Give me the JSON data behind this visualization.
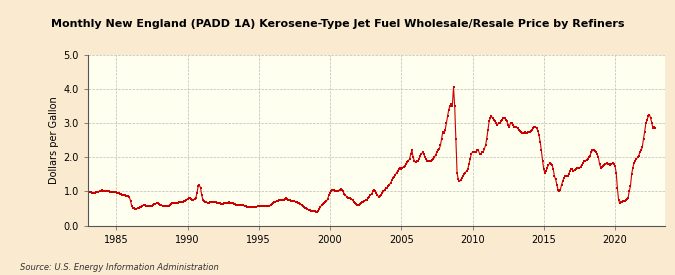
{
  "title": "Monthly New England (PADD 1A) Kerosene-Type Jet Fuel Wholesale/Resale Price by Refiners",
  "ylabel": "Dollars per Gallon",
  "source": "Source: U.S. Energy Information Administration",
  "outer_bg": "#faebd0",
  "inner_bg": "#fffff0",
  "line_color": "#cc0000",
  "xlim": [
    1983.0,
    2023.5
  ],
  "ylim": [
    0.0,
    5.0
  ],
  "yticks": [
    0.0,
    1.0,
    2.0,
    3.0,
    4.0,
    5.0
  ],
  "xticks": [
    1985,
    1990,
    1995,
    2000,
    2005,
    2010,
    2015,
    2020
  ],
  "data": [
    [
      1983.083,
      0.98
    ],
    [
      1983.167,
      0.99
    ],
    [
      1983.25,
      0.97
    ],
    [
      1983.333,
      0.96
    ],
    [
      1983.417,
      0.95
    ],
    [
      1983.5,
      0.96
    ],
    [
      1983.583,
      0.97
    ],
    [
      1983.667,
      0.98
    ],
    [
      1983.75,
      0.99
    ],
    [
      1983.833,
      1.0
    ],
    [
      1983.917,
      1.02
    ],
    [
      1984.0,
      1.03
    ],
    [
      1984.083,
      1.02
    ],
    [
      1984.167,
      1.01
    ],
    [
      1984.25,
      1.0
    ],
    [
      1984.333,
      1.0
    ],
    [
      1984.417,
      1.0
    ],
    [
      1984.5,
      1.0
    ],
    [
      1984.583,
      0.99
    ],
    [
      1984.667,
      0.98
    ],
    [
      1984.75,
      0.97
    ],
    [
      1984.833,
      0.97
    ],
    [
      1984.917,
      0.97
    ],
    [
      1985.0,
      0.97
    ],
    [
      1985.083,
      0.96
    ],
    [
      1985.167,
      0.95
    ],
    [
      1985.25,
      0.93
    ],
    [
      1985.333,
      0.91
    ],
    [
      1985.417,
      0.9
    ],
    [
      1985.5,
      0.9
    ],
    [
      1985.583,
      0.88
    ],
    [
      1985.667,
      0.87
    ],
    [
      1985.75,
      0.87
    ],
    [
      1985.833,
      0.87
    ],
    [
      1985.917,
      0.84
    ],
    [
      1986.0,
      0.72
    ],
    [
      1986.083,
      0.58
    ],
    [
      1986.167,
      0.52
    ],
    [
      1986.25,
      0.5
    ],
    [
      1986.333,
      0.47
    ],
    [
      1986.417,
      0.49
    ],
    [
      1986.5,
      0.51
    ],
    [
      1986.583,
      0.52
    ],
    [
      1986.667,
      0.55
    ],
    [
      1986.75,
      0.55
    ],
    [
      1986.833,
      0.58
    ],
    [
      1986.917,
      0.6
    ],
    [
      1987.0,
      0.6
    ],
    [
      1987.083,
      0.58
    ],
    [
      1987.167,
      0.57
    ],
    [
      1987.25,
      0.57
    ],
    [
      1987.333,
      0.56
    ],
    [
      1987.417,
      0.57
    ],
    [
      1987.5,
      0.58
    ],
    [
      1987.583,
      0.6
    ],
    [
      1987.667,
      0.62
    ],
    [
      1987.75,
      0.64
    ],
    [
      1987.833,
      0.65
    ],
    [
      1987.917,
      0.65
    ],
    [
      1988.0,
      0.63
    ],
    [
      1988.083,
      0.61
    ],
    [
      1988.167,
      0.59
    ],
    [
      1988.25,
      0.57
    ],
    [
      1988.333,
      0.56
    ],
    [
      1988.417,
      0.56
    ],
    [
      1988.5,
      0.57
    ],
    [
      1988.583,
      0.57
    ],
    [
      1988.667,
      0.57
    ],
    [
      1988.75,
      0.6
    ],
    [
      1988.833,
      0.63
    ],
    [
      1988.917,
      0.65
    ],
    [
      1989.0,
      0.67
    ],
    [
      1989.083,
      0.66
    ],
    [
      1989.167,
      0.66
    ],
    [
      1989.25,
      0.66
    ],
    [
      1989.333,
      0.67
    ],
    [
      1989.417,
      0.68
    ],
    [
      1989.5,
      0.68
    ],
    [
      1989.583,
      0.68
    ],
    [
      1989.667,
      0.69
    ],
    [
      1989.75,
      0.71
    ],
    [
      1989.833,
      0.73
    ],
    [
      1989.917,
      0.75
    ],
    [
      1990.0,
      0.78
    ],
    [
      1990.083,
      0.8
    ],
    [
      1990.167,
      0.8
    ],
    [
      1990.25,
      0.78
    ],
    [
      1990.333,
      0.76
    ],
    [
      1990.417,
      0.76
    ],
    [
      1990.5,
      0.78
    ],
    [
      1990.583,
      0.82
    ],
    [
      1990.667,
      0.95
    ],
    [
      1990.75,
      1.15
    ],
    [
      1990.833,
      1.18
    ],
    [
      1990.917,
      1.1
    ],
    [
      1991.0,
      0.88
    ],
    [
      1991.083,
      0.75
    ],
    [
      1991.167,
      0.72
    ],
    [
      1991.25,
      0.7
    ],
    [
      1991.333,
      0.68
    ],
    [
      1991.417,
      0.67
    ],
    [
      1991.5,
      0.67
    ],
    [
      1991.583,
      0.68
    ],
    [
      1991.667,
      0.68
    ],
    [
      1991.75,
      0.7
    ],
    [
      1991.833,
      0.7
    ],
    [
      1991.917,
      0.7
    ],
    [
      1992.0,
      0.68
    ],
    [
      1992.083,
      0.66
    ],
    [
      1992.167,
      0.65
    ],
    [
      1992.25,
      0.65
    ],
    [
      1992.333,
      0.64
    ],
    [
      1992.417,
      0.64
    ],
    [
      1992.5,
      0.64
    ],
    [
      1992.583,
      0.65
    ],
    [
      1992.667,
      0.65
    ],
    [
      1992.75,
      0.66
    ],
    [
      1992.833,
      0.67
    ],
    [
      1992.917,
      0.68
    ],
    [
      1993.0,
      0.67
    ],
    [
      1993.083,
      0.66
    ],
    [
      1993.167,
      0.65
    ],
    [
      1993.25,
      0.64
    ],
    [
      1993.333,
      0.62
    ],
    [
      1993.417,
      0.61
    ],
    [
      1993.5,
      0.61
    ],
    [
      1993.583,
      0.6
    ],
    [
      1993.667,
      0.59
    ],
    [
      1993.75,
      0.59
    ],
    [
      1993.833,
      0.59
    ],
    [
      1993.917,
      0.59
    ],
    [
      1994.0,
      0.57
    ],
    [
      1994.083,
      0.56
    ],
    [
      1994.167,
      0.55
    ],
    [
      1994.25,
      0.55
    ],
    [
      1994.333,
      0.54
    ],
    [
      1994.417,
      0.54
    ],
    [
      1994.5,
      0.55
    ],
    [
      1994.583,
      0.55
    ],
    [
      1994.667,
      0.55
    ],
    [
      1994.75,
      0.55
    ],
    [
      1994.833,
      0.55
    ],
    [
      1994.917,
      0.56
    ],
    [
      1995.0,
      0.56
    ],
    [
      1995.083,
      0.56
    ],
    [
      1995.167,
      0.56
    ],
    [
      1995.25,
      0.57
    ],
    [
      1995.333,
      0.56
    ],
    [
      1995.417,
      0.56
    ],
    [
      1995.5,
      0.56
    ],
    [
      1995.583,
      0.56
    ],
    [
      1995.667,
      0.57
    ],
    [
      1995.75,
      0.58
    ],
    [
      1995.833,
      0.6
    ],
    [
      1995.917,
      0.62
    ],
    [
      1996.0,
      0.65
    ],
    [
      1996.083,
      0.68
    ],
    [
      1996.167,
      0.7
    ],
    [
      1996.25,
      0.72
    ],
    [
      1996.333,
      0.73
    ],
    [
      1996.417,
      0.74
    ],
    [
      1996.5,
      0.76
    ],
    [
      1996.583,
      0.76
    ],
    [
      1996.667,
      0.76
    ],
    [
      1996.75,
      0.76
    ],
    [
      1996.833,
      0.78
    ],
    [
      1996.917,
      0.8
    ],
    [
      1997.0,
      0.78
    ],
    [
      1997.083,
      0.75
    ],
    [
      1997.167,
      0.74
    ],
    [
      1997.25,
      0.73
    ],
    [
      1997.333,
      0.72
    ],
    [
      1997.417,
      0.72
    ],
    [
      1997.5,
      0.71
    ],
    [
      1997.583,
      0.7
    ],
    [
      1997.667,
      0.68
    ],
    [
      1997.75,
      0.66
    ],
    [
      1997.833,
      0.65
    ],
    [
      1997.917,
      0.63
    ],
    [
      1998.0,
      0.6
    ],
    [
      1998.083,
      0.57
    ],
    [
      1998.167,
      0.54
    ],
    [
      1998.25,
      0.52
    ],
    [
      1998.333,
      0.5
    ],
    [
      1998.417,
      0.48
    ],
    [
      1998.5,
      0.46
    ],
    [
      1998.583,
      0.44
    ],
    [
      1998.667,
      0.43
    ],
    [
      1998.75,
      0.43
    ],
    [
      1998.833,
      0.43
    ],
    [
      1998.917,
      0.42
    ],
    [
      1999.0,
      0.4
    ],
    [
      1999.083,
      0.4
    ],
    [
      1999.167,
      0.42
    ],
    [
      1999.25,
      0.48
    ],
    [
      1999.333,
      0.55
    ],
    [
      1999.417,
      0.6
    ],
    [
      1999.5,
      0.63
    ],
    [
      1999.583,
      0.66
    ],
    [
      1999.667,
      0.68
    ],
    [
      1999.75,
      0.71
    ],
    [
      1999.833,
      0.78
    ],
    [
      1999.917,
      0.88
    ],
    [
      2000.0,
      0.95
    ],
    [
      2000.083,
      1.0
    ],
    [
      2000.167,
      1.05
    ],
    [
      2000.25,
      1.05
    ],
    [
      2000.333,
      1.0
    ],
    [
      2000.417,
      1.0
    ],
    [
      2000.5,
      1.0
    ],
    [
      2000.583,
      1.02
    ],
    [
      2000.667,
      1.05
    ],
    [
      2000.75,
      1.06
    ],
    [
      2000.833,
      1.05
    ],
    [
      2000.917,
      1.0
    ],
    [
      2001.0,
      0.92
    ],
    [
      2001.083,
      0.88
    ],
    [
      2001.167,
      0.85
    ],
    [
      2001.25,
      0.82
    ],
    [
      2001.333,
      0.8
    ],
    [
      2001.417,
      0.8
    ],
    [
      2001.5,
      0.78
    ],
    [
      2001.583,
      0.74
    ],
    [
      2001.667,
      0.7
    ],
    [
      2001.75,
      0.65
    ],
    [
      2001.833,
      0.63
    ],
    [
      2001.917,
      0.6
    ],
    [
      2002.0,
      0.6
    ],
    [
      2002.083,
      0.62
    ],
    [
      2002.167,
      0.65
    ],
    [
      2002.25,
      0.68
    ],
    [
      2002.333,
      0.7
    ],
    [
      2002.417,
      0.72
    ],
    [
      2002.5,
      0.74
    ],
    [
      2002.583,
      0.76
    ],
    [
      2002.667,
      0.8
    ],
    [
      2002.75,
      0.85
    ],
    [
      2002.833,
      0.9
    ],
    [
      2002.917,
      0.92
    ],
    [
      2003.0,
      1.0
    ],
    [
      2003.083,
      1.05
    ],
    [
      2003.167,
      1.02
    ],
    [
      2003.25,
      0.95
    ],
    [
      2003.333,
      0.88
    ],
    [
      2003.417,
      0.85
    ],
    [
      2003.5,
      0.87
    ],
    [
      2003.583,
      0.9
    ],
    [
      2003.667,
      0.95
    ],
    [
      2003.75,
      1.0
    ],
    [
      2003.833,
      1.05
    ],
    [
      2003.917,
      1.1
    ],
    [
      2004.0,
      1.1
    ],
    [
      2004.083,
      1.15
    ],
    [
      2004.167,
      1.2
    ],
    [
      2004.25,
      1.25
    ],
    [
      2004.333,
      1.32
    ],
    [
      2004.417,
      1.38
    ],
    [
      2004.5,
      1.42
    ],
    [
      2004.583,
      1.48
    ],
    [
      2004.667,
      1.55
    ],
    [
      2004.75,
      1.6
    ],
    [
      2004.833,
      1.65
    ],
    [
      2004.917,
      1.7
    ],
    [
      2005.0,
      1.65
    ],
    [
      2005.083,
      1.7
    ],
    [
      2005.167,
      1.72
    ],
    [
      2005.25,
      1.75
    ],
    [
      2005.333,
      1.8
    ],
    [
      2005.417,
      1.85
    ],
    [
      2005.5,
      1.9
    ],
    [
      2005.583,
      1.95
    ],
    [
      2005.667,
      2.1
    ],
    [
      2005.75,
      2.2
    ],
    [
      2005.833,
      2.0
    ],
    [
      2005.917,
      1.9
    ],
    [
      2006.0,
      1.85
    ],
    [
      2006.083,
      1.88
    ],
    [
      2006.167,
      1.9
    ],
    [
      2006.25,
      1.95
    ],
    [
      2006.333,
      2.05
    ],
    [
      2006.417,
      2.1
    ],
    [
      2006.5,
      2.15
    ],
    [
      2006.583,
      2.1
    ],
    [
      2006.667,
      2.0
    ],
    [
      2006.75,
      1.95
    ],
    [
      2006.833,
      1.9
    ],
    [
      2006.917,
      1.88
    ],
    [
      2007.0,
      1.88
    ],
    [
      2007.083,
      1.9
    ],
    [
      2007.167,
      1.92
    ],
    [
      2007.25,
      1.95
    ],
    [
      2007.333,
      2.0
    ],
    [
      2007.417,
      2.08
    ],
    [
      2007.5,
      2.15
    ],
    [
      2007.583,
      2.2
    ],
    [
      2007.667,
      2.25
    ],
    [
      2007.75,
      2.35
    ],
    [
      2007.833,
      2.55
    ],
    [
      2007.917,
      2.75
    ],
    [
      2008.0,
      2.7
    ],
    [
      2008.083,
      2.8
    ],
    [
      2008.167,
      3.0
    ],
    [
      2008.25,
      3.2
    ],
    [
      2008.333,
      3.4
    ],
    [
      2008.417,
      3.5
    ],
    [
      2008.5,
      3.55
    ],
    [
      2008.583,
      3.5
    ],
    [
      2008.667,
      4.05
    ],
    [
      2008.75,
      3.5
    ],
    [
      2008.833,
      2.55
    ],
    [
      2008.917,
      1.55
    ],
    [
      2009.0,
      1.35
    ],
    [
      2009.083,
      1.3
    ],
    [
      2009.167,
      1.32
    ],
    [
      2009.25,
      1.4
    ],
    [
      2009.333,
      1.45
    ],
    [
      2009.417,
      1.5
    ],
    [
      2009.5,
      1.55
    ],
    [
      2009.583,
      1.6
    ],
    [
      2009.667,
      1.65
    ],
    [
      2009.75,
      1.8
    ],
    [
      2009.833,
      1.95
    ],
    [
      2009.917,
      2.1
    ],
    [
      2010.0,
      2.15
    ],
    [
      2010.083,
      2.15
    ],
    [
      2010.167,
      2.15
    ],
    [
      2010.25,
      2.15
    ],
    [
      2010.333,
      2.2
    ],
    [
      2010.417,
      2.2
    ],
    [
      2010.5,
      2.1
    ],
    [
      2010.583,
      2.1
    ],
    [
      2010.667,
      2.15
    ],
    [
      2010.75,
      2.15
    ],
    [
      2010.833,
      2.25
    ],
    [
      2010.917,
      2.35
    ],
    [
      2011.0,
      2.55
    ],
    [
      2011.083,
      2.8
    ],
    [
      2011.167,
      3.05
    ],
    [
      2011.25,
      3.15
    ],
    [
      2011.333,
      3.2
    ],
    [
      2011.417,
      3.15
    ],
    [
      2011.5,
      3.1
    ],
    [
      2011.583,
      3.05
    ],
    [
      2011.667,
      3.0
    ],
    [
      2011.75,
      2.95
    ],
    [
      2011.833,
      3.0
    ],
    [
      2011.917,
      3.0
    ],
    [
      2012.0,
      3.05
    ],
    [
      2012.083,
      3.1
    ],
    [
      2012.167,
      3.15
    ],
    [
      2012.25,
      3.15
    ],
    [
      2012.333,
      3.1
    ],
    [
      2012.417,
      3.05
    ],
    [
      2012.5,
      2.95
    ],
    [
      2012.583,
      2.9
    ],
    [
      2012.667,
      3.0
    ],
    [
      2012.75,
      3.0
    ],
    [
      2012.833,
      2.95
    ],
    [
      2012.917,
      2.9
    ],
    [
      2013.0,
      2.9
    ],
    [
      2013.083,
      2.88
    ],
    [
      2013.167,
      2.85
    ],
    [
      2013.25,
      2.8
    ],
    [
      2013.333,
      2.78
    ],
    [
      2013.417,
      2.75
    ],
    [
      2013.5,
      2.7
    ],
    [
      2013.583,
      2.7
    ],
    [
      2013.667,
      2.75
    ],
    [
      2013.75,
      2.7
    ],
    [
      2013.833,
      2.72
    ],
    [
      2013.917,
      2.75
    ],
    [
      2014.0,
      2.75
    ],
    [
      2014.083,
      2.78
    ],
    [
      2014.167,
      2.8
    ],
    [
      2014.25,
      2.85
    ],
    [
      2014.333,
      2.9
    ],
    [
      2014.417,
      2.9
    ],
    [
      2014.5,
      2.85
    ],
    [
      2014.583,
      2.78
    ],
    [
      2014.667,
      2.65
    ],
    [
      2014.75,
      2.45
    ],
    [
      2014.833,
      2.2
    ],
    [
      2014.917,
      1.9
    ],
    [
      2015.0,
      1.65
    ],
    [
      2015.083,
      1.55
    ],
    [
      2015.167,
      1.6
    ],
    [
      2015.25,
      1.7
    ],
    [
      2015.333,
      1.78
    ],
    [
      2015.417,
      1.82
    ],
    [
      2015.5,
      1.8
    ],
    [
      2015.583,
      1.78
    ],
    [
      2015.667,
      1.65
    ],
    [
      2015.75,
      1.45
    ],
    [
      2015.833,
      1.35
    ],
    [
      2015.917,
      1.2
    ],
    [
      2016.0,
      1.05
    ],
    [
      2016.083,
      1.0
    ],
    [
      2016.167,
      1.05
    ],
    [
      2016.25,
      1.2
    ],
    [
      2016.333,
      1.3
    ],
    [
      2016.417,
      1.4
    ],
    [
      2016.5,
      1.45
    ],
    [
      2016.583,
      1.45
    ],
    [
      2016.667,
      1.45
    ],
    [
      2016.75,
      1.5
    ],
    [
      2016.833,
      1.6
    ],
    [
      2016.917,
      1.65
    ],
    [
      2017.0,
      1.65
    ],
    [
      2017.083,
      1.6
    ],
    [
      2017.167,
      1.62
    ],
    [
      2017.25,
      1.65
    ],
    [
      2017.333,
      1.7
    ],
    [
      2017.417,
      1.7
    ],
    [
      2017.5,
      1.68
    ],
    [
      2017.583,
      1.72
    ],
    [
      2017.667,
      1.78
    ],
    [
      2017.75,
      1.82
    ],
    [
      2017.833,
      1.88
    ],
    [
      2017.917,
      1.9
    ],
    [
      2018.0,
      1.92
    ],
    [
      2018.083,
      1.95
    ],
    [
      2018.167,
      2.0
    ],
    [
      2018.25,
      2.05
    ],
    [
      2018.333,
      2.15
    ],
    [
      2018.417,
      2.2
    ],
    [
      2018.5,
      2.2
    ],
    [
      2018.583,
      2.18
    ],
    [
      2018.667,
      2.15
    ],
    [
      2018.75,
      2.1
    ],
    [
      2018.833,
      2.0
    ],
    [
      2018.917,
      1.8
    ],
    [
      2019.0,
      1.7
    ],
    [
      2019.083,
      1.72
    ],
    [
      2019.167,
      1.75
    ],
    [
      2019.25,
      1.78
    ],
    [
      2019.333,
      1.8
    ],
    [
      2019.417,
      1.82
    ],
    [
      2019.5,
      1.8
    ],
    [
      2019.583,
      1.8
    ],
    [
      2019.667,
      1.78
    ],
    [
      2019.75,
      1.8
    ],
    [
      2019.833,
      1.82
    ],
    [
      2019.917,
      1.8
    ],
    [
      2020.0,
      1.75
    ],
    [
      2020.083,
      1.55
    ],
    [
      2020.167,
      1.1
    ],
    [
      2020.25,
      0.75
    ],
    [
      2020.333,
      0.65
    ],
    [
      2020.417,
      0.68
    ],
    [
      2020.5,
      0.7
    ],
    [
      2020.583,
      0.72
    ],
    [
      2020.667,
      0.72
    ],
    [
      2020.75,
      0.75
    ],
    [
      2020.833,
      0.78
    ],
    [
      2020.917,
      0.82
    ],
    [
      2021.0,
      1.0
    ],
    [
      2021.083,
      1.15
    ],
    [
      2021.167,
      1.5
    ],
    [
      2021.25,
      1.7
    ],
    [
      2021.333,
      1.82
    ],
    [
      2021.417,
      1.9
    ],
    [
      2021.5,
      1.95
    ],
    [
      2021.583,
      2.0
    ],
    [
      2021.667,
      2.05
    ],
    [
      2021.75,
      2.15
    ],
    [
      2021.833,
      2.2
    ],
    [
      2021.917,
      2.3
    ],
    [
      2022.0,
      2.55
    ],
    [
      2022.083,
      2.75
    ],
    [
      2022.167,
      3.0
    ],
    [
      2022.25,
      3.1
    ],
    [
      2022.333,
      3.2
    ],
    [
      2022.417,
      3.25
    ],
    [
      2022.5,
      3.15
    ],
    [
      2022.583,
      3.0
    ],
    [
      2022.667,
      2.85
    ],
    [
      2022.75,
      2.9
    ],
    [
      2022.833,
      2.85
    ]
  ]
}
